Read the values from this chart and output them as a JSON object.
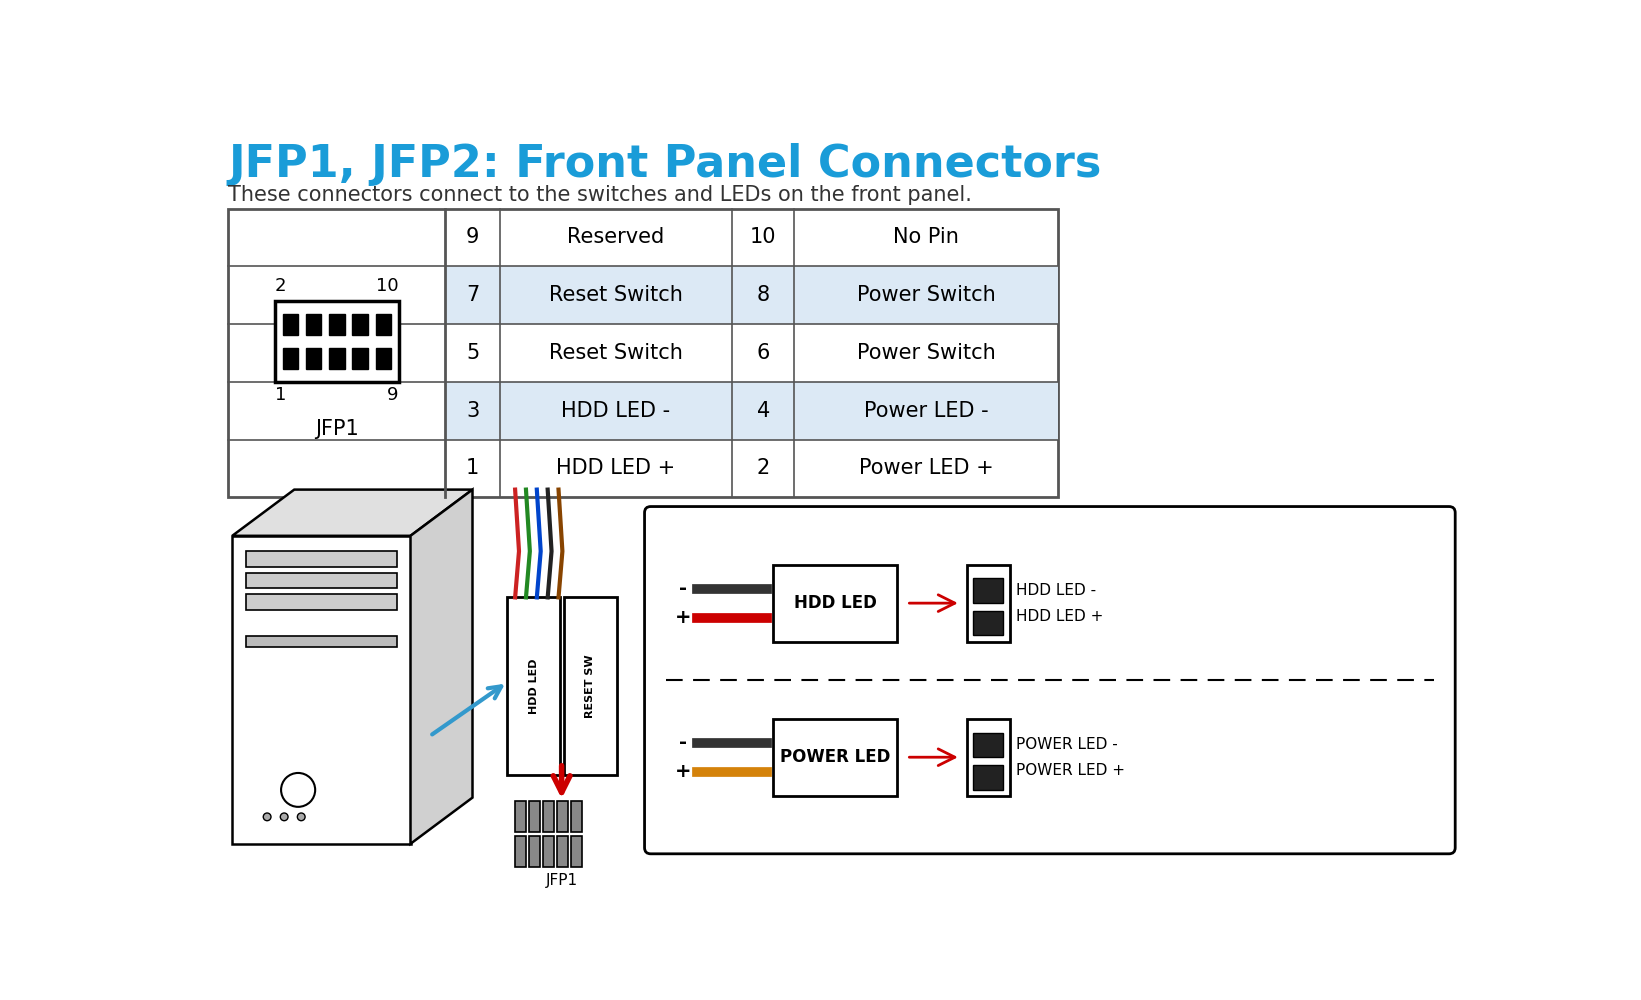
{
  "title": "JFP1, JFP2: Front Panel Connectors",
  "subtitle": "These connectors connect to the switches and LEDs on the front panel.",
  "title_color": "#1a9cd8",
  "subtitle_color": "#333333",
  "bg_color": "#ffffff",
  "table_rows": [
    {
      "pin1": "1",
      "label1": "HDD LED +",
      "pin2": "2",
      "label2": "Power LED +",
      "shaded": false
    },
    {
      "pin1": "3",
      "label1": "HDD LED -",
      "pin2": "4",
      "label2": "Power LED -",
      "shaded": true
    },
    {
      "pin1": "5",
      "label1": "Reset Switch",
      "pin2": "6",
      "label2": "Power Switch",
      "shaded": false
    },
    {
      "pin1": "7",
      "label1": "Reset Switch",
      "pin2": "8",
      "label2": "Power Switch",
      "shaded": true
    },
    {
      "pin1": "9",
      "label1": "Reserved",
      "pin2": "10",
      "label2": "No Pin",
      "shaded": false
    }
  ],
  "shaded_color": "#dce9f5",
  "table_border_color": "#555555",
  "connector_label": "JFP1",
  "hdd_led_label": "HDD LED",
  "power_led_label": "POWER LED",
  "hdd_pin_labels": [
    "HDD LED -",
    "HDD LED +"
  ],
  "power_pin_labels": [
    "POWER LED -",
    "POWER LED +"
  ],
  "red_color": "#cc0000",
  "orange_color": "#d4820a",
  "black_color": "#111111",
  "gray_color": "#888888",
  "blue_arrow_color": "#3399cc",
  "dark_gray": "#444444",
  "wire_colors": [
    "#cc2222",
    "#228822",
    "#0044cc",
    "#222222",
    "#884400"
  ]
}
